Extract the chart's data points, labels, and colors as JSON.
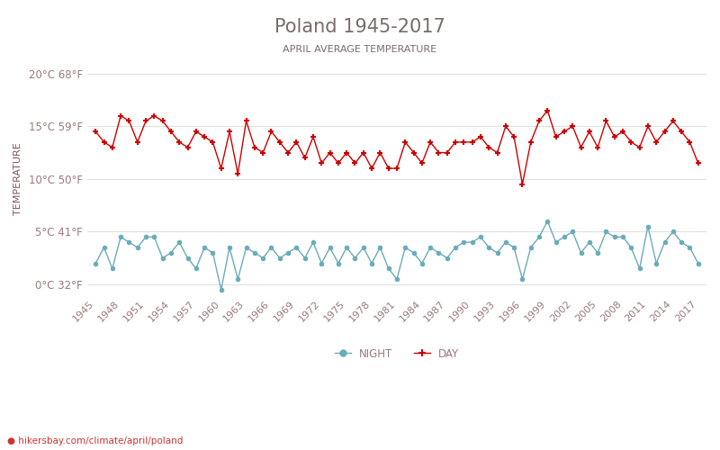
{
  "title": "Poland 1945-2017",
  "subtitle": "APRIL AVERAGE TEMPERATURE",
  "ylabel": "TEMPERATURE",
  "watermark": "hikersbay.com/climate/april/poland",
  "yticks_c": [
    0,
    5,
    10,
    15,
    20
  ],
  "yticks_f": [
    32,
    41,
    50,
    59,
    68
  ],
  "years": [
    1945,
    1946,
    1947,
    1948,
    1949,
    1950,
    1951,
    1952,
    1953,
    1954,
    1955,
    1956,
    1957,
    1958,
    1959,
    1960,
    1961,
    1962,
    1963,
    1964,
    1965,
    1966,
    1967,
    1968,
    1969,
    1970,
    1971,
    1972,
    1973,
    1974,
    1975,
    1976,
    1977,
    1978,
    1979,
    1980,
    1981,
    1982,
    1983,
    1984,
    1985,
    1986,
    1987,
    1988,
    1989,
    1990,
    1991,
    1992,
    1993,
    1994,
    1995,
    1996,
    1997,
    1998,
    1999,
    2000,
    2001,
    2002,
    2003,
    2004,
    2005,
    2006,
    2007,
    2008,
    2009,
    2010,
    2011,
    2012,
    2013,
    2014,
    2015,
    2016,
    2017
  ],
  "day": [
    14.5,
    13.5,
    13.0,
    16.0,
    15.5,
    13.5,
    15.5,
    16.0,
    15.5,
    14.5,
    13.5,
    13.0,
    14.5,
    14.0,
    13.5,
    11.0,
    14.5,
    10.5,
    15.5,
    13.0,
    12.5,
    14.5,
    13.5,
    12.5,
    13.5,
    12.0,
    14.0,
    11.5,
    12.5,
    11.5,
    12.5,
    11.5,
    12.5,
    11.0,
    12.5,
    11.0,
    11.0,
    13.5,
    12.5,
    11.5,
    13.5,
    12.5,
    12.5,
    13.5,
    13.5,
    13.5,
    14.0,
    13.0,
    12.5,
    15.0,
    14.0,
    9.5,
    13.5,
    15.5,
    16.5,
    14.0,
    14.5,
    15.0,
    13.0,
    14.5,
    13.0,
    15.5,
    14.0,
    14.5,
    13.5,
    13.0,
    15.0,
    13.5,
    14.5,
    15.5,
    14.5,
    13.5,
    11.5
  ],
  "night": [
    2.0,
    3.5,
    1.5,
    4.5,
    4.0,
    3.5,
    4.5,
    4.5,
    2.5,
    3.0,
    4.0,
    2.5,
    1.5,
    3.5,
    3.0,
    -0.5,
    3.5,
    0.5,
    3.5,
    3.0,
    2.5,
    3.5,
    2.5,
    3.0,
    3.5,
    2.5,
    4.0,
    2.0,
    3.5,
    2.0,
    3.5,
    2.5,
    3.5,
    2.0,
    3.5,
    1.5,
    0.5,
    3.5,
    3.0,
    2.0,
    3.5,
    3.0,
    2.5,
    3.5,
    4.0,
    4.0,
    4.5,
    3.5,
    3.0,
    4.0,
    3.5,
    0.5,
    3.5,
    4.5,
    6.0,
    4.0,
    4.5,
    5.0,
    3.0,
    4.0,
    3.0,
    5.0,
    4.5,
    4.5,
    3.5,
    1.5,
    5.5,
    2.0,
    4.0,
    5.0,
    4.0,
    3.5,
    2.0
  ],
  "day_color": "#cc0000",
  "night_color": "#6aacb8",
  "title_color": "#7a6a6a",
  "subtitle_color": "#7a6a6a",
  "axis_label_color": "#7a5a5a",
  "tick_color": "#9a7a7a",
  "grid_color": "#e0e0e0",
  "background_color": "#ffffff",
  "watermark_color": "#cc3333",
  "ylim": [
    -1,
    21
  ],
  "xlim": [
    1944,
    2018
  ]
}
